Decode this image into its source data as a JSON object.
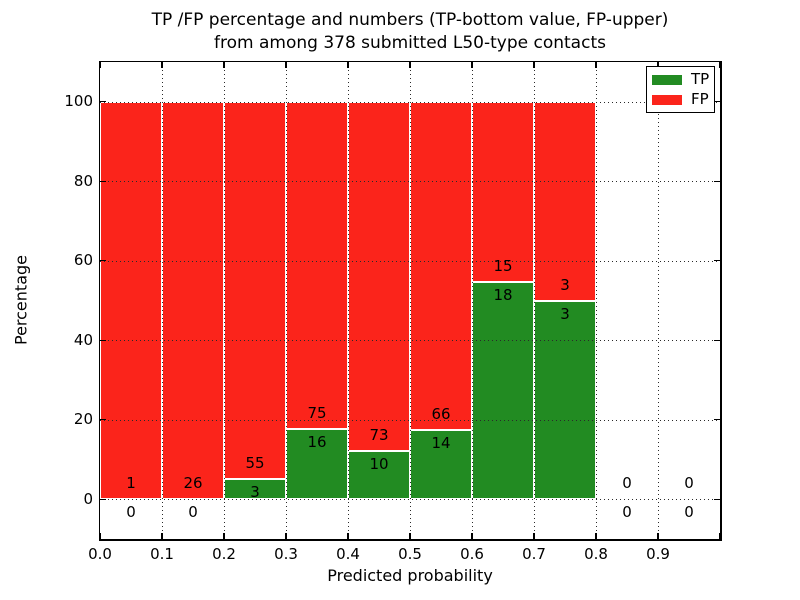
{
  "title": {
    "line1": "TP /FP percentage and numbers (TP-bottom value, FP-upper)",
    "line2": "from among 378 submitted L50-type contacts"
  },
  "legend": {
    "position": "upper right",
    "items": [
      {
        "label": "TP",
        "color": "#228b22"
      },
      {
        "label": "FP",
        "color": "#fb241b"
      }
    ]
  },
  "chart_data": {
    "type": "bar",
    "stacked": true,
    "title": "TP /FP percentage and numbers (TP-bottom value, FP-upper) from among 378 submitted L50-type contacts",
    "xlabel": "Predicted probability",
    "ylabel": "Percentage",
    "xlim": [
      0.0,
      1.0
    ],
    "ylim": [
      -10,
      110
    ],
    "xticks": [
      0.0,
      0.1,
      0.2,
      0.3,
      0.4,
      0.5,
      0.6,
      0.7,
      0.8,
      0.9,
      1.0
    ],
    "xtick_labels": [
      "0.0",
      "0.1",
      "0.2",
      "0.3",
      "0.4",
      "0.5",
      "0.6",
      "0.7",
      "0.8",
      "0.9",
      ""
    ],
    "yticks": [
      0,
      20,
      40,
      60,
      80,
      100
    ],
    "ytick_labels": [
      "0",
      "20",
      "40",
      "60",
      "80",
      "100"
    ],
    "grid": {
      "style": "dotted",
      "drawn_over_bars": true
    },
    "total_contacts": 378,
    "series": [
      {
        "name": "TP",
        "color": "#228b22",
        "position": "bottom"
      },
      {
        "name": "FP",
        "color": "#fb241b",
        "position": "top"
      }
    ],
    "bins": [
      {
        "range": [
          0.0,
          0.1
        ],
        "tp": 0,
        "fp": 1,
        "tp_pct": 0.0,
        "fp_pct": 100.0
      },
      {
        "range": [
          0.1,
          0.2
        ],
        "tp": 0,
        "fp": 26,
        "tp_pct": 0.0,
        "fp_pct": 100.0
      },
      {
        "range": [
          0.2,
          0.3
        ],
        "tp": 3,
        "fp": 55,
        "tp_pct": 5.17,
        "fp_pct": 94.83
      },
      {
        "range": [
          0.3,
          0.4
        ],
        "tp": 16,
        "fp": 75,
        "tp_pct": 17.58,
        "fp_pct": 82.42
      },
      {
        "range": [
          0.4,
          0.5
        ],
        "tp": 10,
        "fp": 73,
        "tp_pct": 12.05,
        "fp_pct": 87.95
      },
      {
        "range": [
          0.5,
          0.6
        ],
        "tp": 14,
        "fp": 66,
        "tp_pct": 17.5,
        "fp_pct": 82.5
      },
      {
        "range": [
          0.6,
          0.7
        ],
        "tp": 18,
        "fp": 15,
        "tp_pct": 54.55,
        "fp_pct": 45.45
      },
      {
        "range": [
          0.7,
          0.8
        ],
        "tp": 3,
        "fp": 3,
        "tp_pct": 50.0,
        "fp_pct": 50.0
      },
      {
        "range": [
          0.8,
          0.9
        ],
        "tp": 0,
        "fp": 0,
        "tp_pct": 0.0,
        "fp_pct": 0.0
      },
      {
        "range": [
          0.9,
          1.0
        ],
        "tp": 0,
        "fp": 0,
        "tp_pct": 0.0,
        "fp_pct": 0.0
      }
    ]
  }
}
